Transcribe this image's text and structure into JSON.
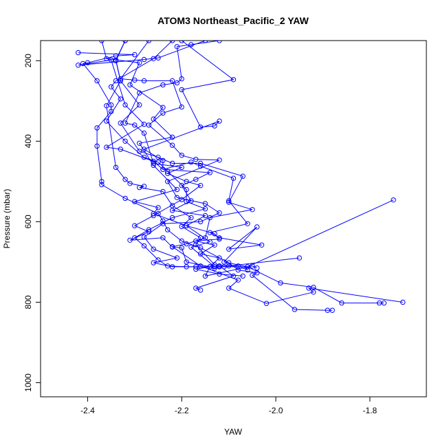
{
  "chart_data": {
    "type": "line",
    "title": "ATOM3 Northeast_Pacific_2 YAW",
    "xlabel": "YAW",
    "ylabel": "Pressure (mbar)",
    "xlim": [
      -2.5,
      -1.68
    ],
    "ylim": [
      1035,
      150
    ],
    "y_reversed": true,
    "x_ticks": [
      -2.4,
      -2.2,
      -2.0,
      -1.8
    ],
    "x_tick_labels": [
      "-2.4",
      "-2.2",
      "-2.0",
      "-1.8"
    ],
    "y_ticks": [
      200,
      400,
      600,
      800,
      1000
    ],
    "y_tick_labels": [
      "200",
      "400",
      "600",
      "800",
      "1000"
    ],
    "grid": false,
    "legend": "none",
    "marker": "open-circle",
    "color": "#0000ff",
    "series": [
      {
        "points": [
          [
            -2.15,
            150
          ],
          [
            -2.25,
            193
          ],
          [
            -2.28,
            197
          ],
          [
            -2.42,
            211
          ],
          [
            -2.35,
            198
          ],
          [
            -2.32,
            310
          ],
          [
            -2.28,
            358
          ],
          [
            -2.36,
            415
          ],
          [
            -2.33,
            420
          ],
          [
            -2.26,
            450
          ],
          [
            -2.24,
            470
          ],
          [
            -2.14,
            478
          ],
          [
            -2.17,
            495
          ],
          [
            -2.2,
            510
          ],
          [
            -2.18,
            548
          ],
          [
            -2.22,
            572
          ],
          [
            -2.15,
            585
          ],
          [
            -2.19,
            610
          ],
          [
            -2.14,
            650
          ],
          [
            -2.18,
            663
          ],
          [
            -2.13,
            712
          ],
          [
            -2.12,
            712
          ],
          [
            -2.06,
            712
          ],
          [
            -1.99,
            752
          ],
          [
            -1.92,
            763
          ],
          [
            -1.86,
            802
          ],
          [
            -1.77,
            802
          ],
          [
            -1.78,
            802
          ]
        ]
      },
      {
        "points": [
          [
            -2.42,
            180
          ],
          [
            -2.3,
            185
          ],
          [
            -2.34,
            188
          ],
          [
            -2.4,
            205
          ],
          [
            -2.41,
            207
          ],
          [
            -2.38,
            250
          ],
          [
            -2.35,
            310
          ],
          [
            -2.35,
            326
          ],
          [
            -2.38,
            367
          ],
          [
            -2.38,
            412
          ],
          [
            -2.37,
            500
          ],
          [
            -2.37,
            508
          ],
          [
            -2.32,
            542
          ],
          [
            -2.25,
            580
          ],
          [
            -2.24,
            598
          ],
          [
            -2.23,
            620
          ],
          [
            -2.2,
            648
          ],
          [
            -2.16,
            665
          ],
          [
            -2.1,
            702
          ],
          [
            -2.08,
            720
          ],
          [
            -2.04,
            727
          ],
          [
            -2.05,
            733
          ],
          [
            -1.96,
            818
          ],
          [
            -1.89,
            820
          ],
          [
            -1.88,
            820
          ]
        ]
      },
      {
        "points": [
          [
            -2.32,
            150
          ],
          [
            -2.34,
            198
          ],
          [
            -2.33,
            250
          ],
          [
            -2.29,
            310
          ],
          [
            -2.33,
            355
          ],
          [
            -2.29,
            425
          ],
          [
            -2.25,
            440
          ],
          [
            -2.22,
            455
          ],
          [
            -2.16,
            455
          ],
          [
            -2.07,
            487
          ],
          [
            -2.1,
            552
          ],
          [
            -2.05,
            570
          ],
          [
            -2.14,
            590
          ],
          [
            -2.15,
            640
          ],
          [
            -2.19,
            655
          ],
          [
            -2.22,
            662
          ],
          [
            -2.16,
            710
          ],
          [
            -2.08,
            745
          ],
          [
            -2.1,
            765
          ],
          [
            -2.02,
            803
          ],
          [
            -1.92,
            775
          ],
          [
            -1.93,
            765
          ],
          [
            -1.73,
            800
          ]
        ]
      },
      {
        "points": [
          [
            -2.37,
            150
          ],
          [
            -2.36,
            195
          ],
          [
            -2.29,
            205
          ],
          [
            -2.31,
            260
          ],
          [
            -2.24,
            316
          ],
          [
            -2.26,
            345
          ],
          [
            -2.22,
            390
          ],
          [
            -2.29,
            405
          ],
          [
            -2.26,
            460
          ],
          [
            -2.21,
            520
          ],
          [
            -2.3,
            550
          ],
          [
            -2.25,
            565
          ],
          [
            -2.26,
            580
          ],
          [
            -2.19,
            610
          ],
          [
            -2.13,
            630
          ],
          [
            -2.12,
            643
          ],
          [
            -2.17,
            648
          ],
          [
            -2.13,
            658
          ],
          [
            -2.16,
            680
          ],
          [
            -2.12,
            690
          ],
          [
            -2.14,
            712
          ],
          [
            -2.13,
            716
          ],
          [
            -2.12,
            710
          ],
          [
            -2.09,
            735
          ],
          [
            -2.17,
            765
          ],
          [
            -2.16,
            770
          ]
        ]
      },
      {
        "points": [
          [
            -2.12,
            150
          ],
          [
            -2.18,
            160
          ],
          [
            -2.21,
            165
          ],
          [
            -2.2,
            245
          ],
          [
            -2.21,
            255
          ],
          [
            -2.24,
            260
          ],
          [
            -2.29,
            280
          ],
          [
            -2.32,
            355
          ],
          [
            -2.3,
            360
          ],
          [
            -2.28,
            380
          ],
          [
            -2.26,
            455
          ],
          [
            -2.2,
            465
          ],
          [
            -2.23,
            480
          ],
          [
            -2.19,
            500
          ],
          [
            -2.16,
            510
          ],
          [
            -2.2,
            545
          ],
          [
            -2.26,
            585
          ],
          [
            -2.3,
            610
          ],
          [
            -2.27,
            625
          ],
          [
            -2.31,
            646
          ],
          [
            -2.24,
            640
          ],
          [
            -2.22,
            663
          ],
          [
            -2.2,
            665
          ],
          [
            -2.19,
            700
          ],
          [
            -2.14,
            712
          ],
          [
            -2.17,
            718
          ],
          [
            -2.12,
            730
          ],
          [
            -2.07,
            735
          ]
        ]
      },
      {
        "points": [
          [
            -2.27,
            150
          ],
          [
            -2.33,
            245
          ],
          [
            -2.3,
            248
          ],
          [
            -2.28,
            250
          ],
          [
            -2.22,
            250
          ],
          [
            -2.2,
            315
          ],
          [
            -2.24,
            330
          ],
          [
            -2.27,
            360
          ],
          [
            -2.22,
            410
          ],
          [
            -2.2,
            435
          ],
          [
            -2.17,
            445
          ],
          [
            -2.12,
            447
          ],
          [
            -2.23,
            500
          ],
          [
            -2.21,
            540
          ],
          [
            -2.15,
            555
          ],
          [
            -2.12,
            578
          ],
          [
            -2.16,
            600
          ],
          [
            -2.24,
            605
          ],
          [
            -2.28,
            638
          ],
          [
            -2.26,
            668
          ],
          [
            -2.21,
            690
          ],
          [
            -2.26,
            702
          ],
          [
            -2.22,
            712
          ],
          [
            -2.17,
            712
          ],
          [
            -2.14,
            712
          ],
          [
            -2.15,
            735
          ],
          [
            -2.05,
            710
          ],
          [
            -2.04,
            715
          ]
        ]
      },
      {
        "points": [
          [
            -2.22,
            150
          ],
          [
            -2.26,
            195
          ],
          [
            -2.34,
            250
          ],
          [
            -2.35,
            265
          ],
          [
            -2.33,
            295
          ],
          [
            -2.36,
            350
          ],
          [
            -2.32,
            400
          ],
          [
            -2.28,
            440
          ],
          [
            -2.25,
            452
          ],
          [
            -2.23,
            475
          ],
          [
            -2.19,
            520
          ],
          [
            -2.19,
            550
          ],
          [
            -2.15,
            568
          ],
          [
            -2.22,
            590
          ],
          [
            -2.27,
            620
          ],
          [
            -2.3,
            640
          ],
          [
            -2.28,
            660
          ],
          [
            -2.25,
            695
          ],
          [
            -2.23,
            710
          ],
          [
            -2.19,
            712
          ],
          [
            -2.11,
            712
          ],
          [
            -2.1,
            710
          ],
          [
            -1.95,
            690
          ]
        ]
      },
      {
        "points": [
          [
            -2.2,
            150
          ],
          [
            -2.09,
            247
          ],
          [
            -2.2,
            272
          ],
          [
            -2.16,
            365
          ],
          [
            -2.13,
            362
          ],
          [
            -2.12,
            350
          ],
          [
            -2.28,
            420
          ],
          [
            -2.24,
            448
          ],
          [
            -2.24,
            470
          ],
          [
            -2.18,
            452
          ],
          [
            -2.16,
            462
          ],
          [
            -2.09,
            492
          ],
          [
            -2.1,
            548
          ],
          [
            -2.06,
            605
          ],
          [
            -2.14,
            627
          ],
          [
            -2.12,
            640
          ],
          [
            -2.03,
            658
          ],
          [
            -2.1,
            668
          ],
          [
            -2.04,
            613
          ],
          [
            -2.11,
            700
          ],
          [
            -2.06,
            712
          ],
          [
            -1.75,
            546
          ]
        ]
      },
      {
        "points": [
          [
            -2.32,
            150
          ],
          [
            -2.34,
            200
          ],
          [
            -2.33,
            250
          ],
          [
            -2.36,
            312
          ],
          [
            -2.34,
            465
          ],
          [
            -2.32,
            495
          ],
          [
            -2.31,
            505
          ],
          [
            -2.28,
            512
          ],
          [
            -2.29,
            515
          ],
          [
            -2.24,
            525
          ],
          [
            -2.22,
            560
          ],
          [
            -2.18,
            590
          ],
          [
            -2.2,
            612
          ],
          [
            -2.16,
            640
          ],
          [
            -2.17,
            657
          ],
          [
            -2.13,
            707
          ],
          [
            -2.12,
            710
          ],
          [
            -2.08,
            710
          ],
          [
            -2.06,
            720
          ]
        ]
      }
    ]
  }
}
